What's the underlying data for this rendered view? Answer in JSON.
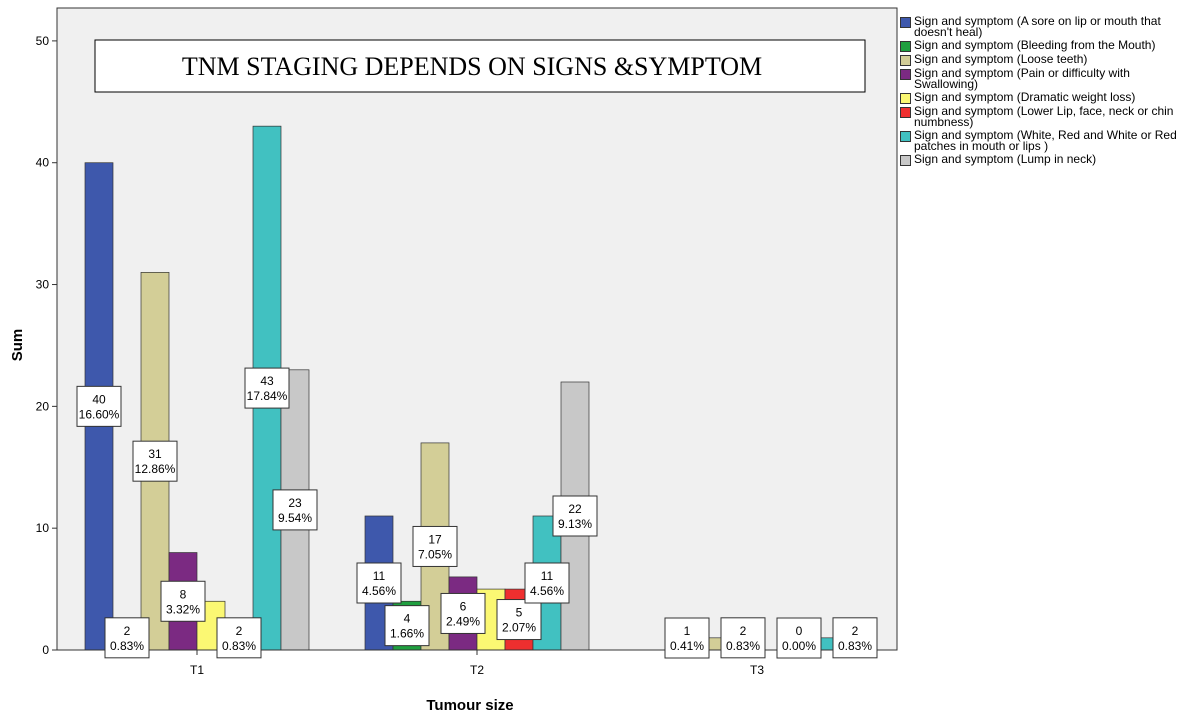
{
  "chart_data": {
    "type": "bar",
    "title": "TNM STAGING DEPENDS ON SIGNS &SYMPTOM",
    "x_label": "Tumour size",
    "y_label": "Sum",
    "categories": [
      "T1",
      "T2",
      "T3"
    ],
    "series": [
      {
        "name": "Sign and symptom (A sore on lip or mouth that doesn't heal)",
        "color": "#3e58ac",
        "values": [
          40,
          11,
          0
        ],
        "percent_labels": [
          "16.60%",
          "4.56%",
          null
        ]
      },
      {
        "name": "Sign and symptom (Bleeding from the Mouth)",
        "color": "#1f9f3f",
        "values": [
          2,
          4,
          1
        ],
        "percent_labels": [
          "0.83%",
          "1.66%",
          "0.41%"
        ]
      },
      {
        "name": "Sign and symptom (Loose teeth)",
        "color": "#d3ce97",
        "values": [
          31,
          17,
          1
        ],
        "percent_labels": [
          "12.86%",
          "7.05%",
          null
        ]
      },
      {
        "name": "Sign and symptom (Pain or difficulty with Swallowing)",
        "color": "#7b2a82",
        "values": [
          8,
          6,
          2
        ],
        "percent_labels": [
          "3.32%",
          "2.49%",
          "0.83%"
        ]
      },
      {
        "name": "Sign and symptom (Dramatic weight loss)",
        "color": "#fbf873",
        "values": [
          4,
          5,
          0
        ],
        "percent_labels": [
          null,
          null,
          null
        ]
      },
      {
        "name": "Sign and symptom (Lower Lip, face, neck or chin numbness)",
        "color": "#ee2f2f",
        "values": [
          2,
          5,
          0
        ],
        "percent_labels": [
          "0.83%",
          "2.07%",
          "0.00%"
        ]
      },
      {
        "name": "Sign and symptom (White, Red and White or Red patches in mouth or lips  )",
        "color": "#41c1c1",
        "values": [
          43,
          11,
          1
        ],
        "percent_labels": [
          "17.84%",
          "4.56%",
          null
        ]
      },
      {
        "name": "Sign and symptom (Lump in neck)",
        "color": "#c8c8c8",
        "values": [
          23,
          22,
          2
        ],
        "percent_labels": [
          "9.54%",
          "9.13%",
          "0.83%"
        ]
      }
    ],
    "ylim": [
      0,
      52.7
    ],
    "yticks": [
      0,
      10,
      20,
      30,
      40,
      50
    ]
  }
}
